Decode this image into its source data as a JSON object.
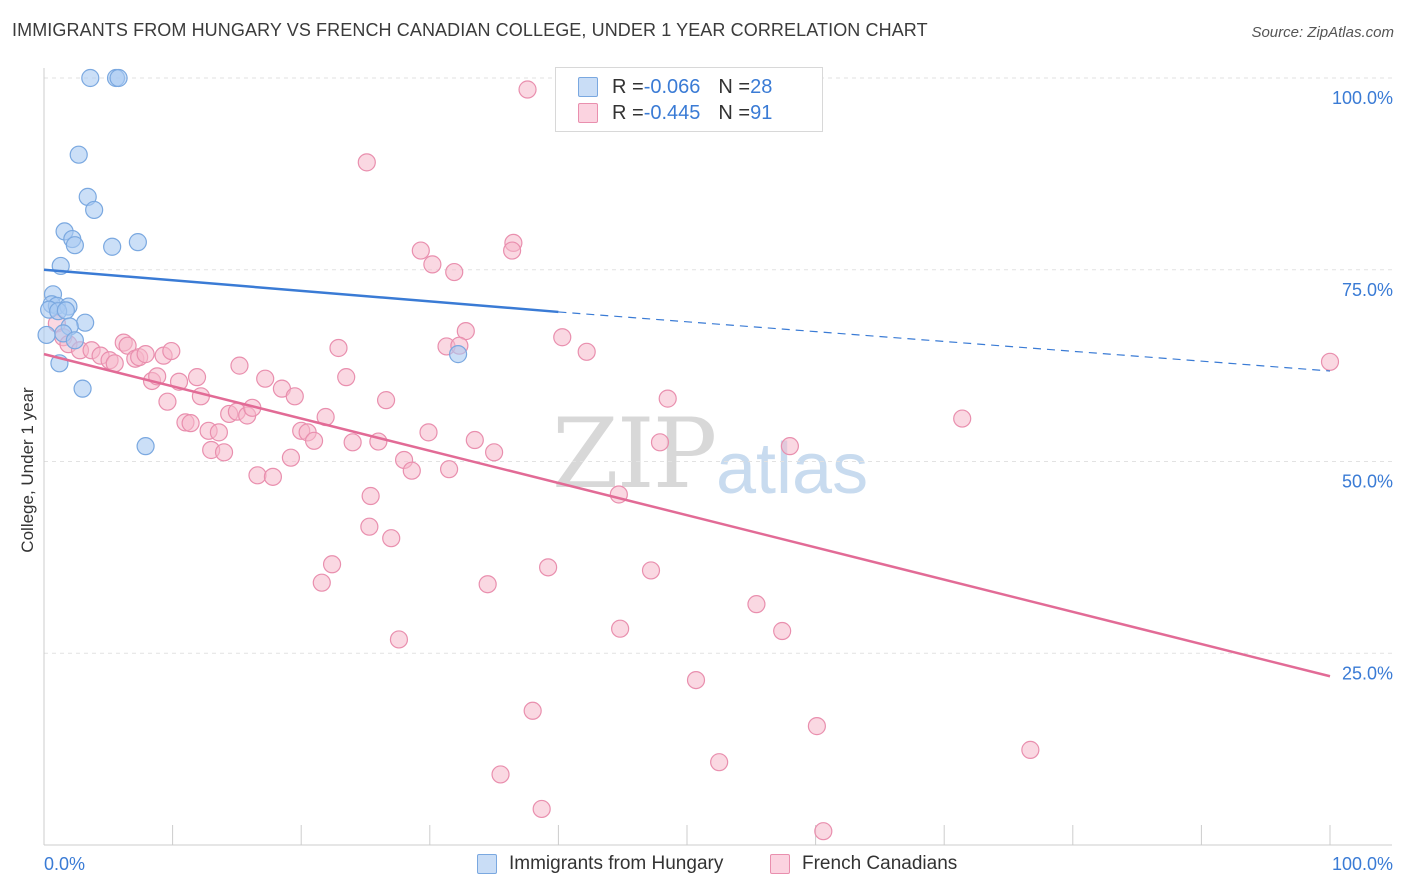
{
  "title": "IMMIGRANTS FROM HUNGARY VS FRENCH CANADIAN COLLEGE, UNDER 1 YEAR CORRELATION CHART",
  "source": "Source: ZipAtlas.com",
  "watermark": {
    "zip": "ZIP",
    "atlas": "atlas"
  },
  "legend": {
    "rows": [
      {
        "r_label": "R = ",
        "r_value": "-0.066",
        "n_label": "N = ",
        "n_value": "28",
        "color": "#a9c9f2"
      },
      {
        "r_label": "R = ",
        "r_value": "-0.445",
        "n_label": "N = ",
        "n_value": "91",
        "color": "#f6b8cb"
      }
    ]
  },
  "bottom_legend": {
    "hungary": "Immigrants from Hungary",
    "french": "French Canadians"
  },
  "colors": {
    "blue_fill": "#a9c9f2",
    "blue_stroke": "#7aa8e0",
    "blue_line": "#3a7bd5",
    "pink_fill": "#f6b8cb",
    "pink_stroke": "#e98fae",
    "pink_line": "#e26b96",
    "grid": "#e2e2e2",
    "tick_label": "#3a7bd5"
  },
  "chart_data": {
    "type": "scatter",
    "title": "IMMIGRANTS FROM HUNGARY VS FRENCH CANADIAN COLLEGE, UNDER 1 YEAR CORRELATION CHART",
    "xlabel": "",
    "ylabel": "College, Under 1 year",
    "xlim": [
      0,
      100
    ],
    "ylim": [
      0,
      100
    ],
    "x_tick_labels": [
      "0.0%",
      "100.0%"
    ],
    "y_tick_labels": [
      "100.0%",
      "75.0%",
      "50.0%",
      "25.0%"
    ],
    "y_ticks": [
      100,
      75,
      50,
      25
    ],
    "grid": true,
    "legend_position": "top-center",
    "series": [
      {
        "name": "Immigrants from Hungary",
        "r": -0.066,
        "n": 28,
        "trend": {
          "x0": 0,
          "y0": 75.0,
          "x1": 40,
          "y1": 69.5,
          "dashed_to_x": 100,
          "dashed_to_y": 61.8
        },
        "points": [
          [
            3.6,
            100
          ],
          [
            5.6,
            100
          ],
          [
            5.8,
            100
          ],
          [
            2.7,
            90
          ],
          [
            3.4,
            84.5
          ],
          [
            3.9,
            82.8
          ],
          [
            1.6,
            80
          ],
          [
            2.2,
            79
          ],
          [
            2.4,
            78.2
          ],
          [
            5.3,
            78
          ],
          [
            7.3,
            78.6
          ],
          [
            1.3,
            75.5
          ],
          [
            0.7,
            71.8
          ],
          [
            0.6,
            70.5
          ],
          [
            1.0,
            70.3
          ],
          [
            1.9,
            70.2
          ],
          [
            0.4,
            69.8
          ],
          [
            1.1,
            69.6
          ],
          [
            1.7,
            69.7
          ],
          [
            3.2,
            68.1
          ],
          [
            2.0,
            67.6
          ],
          [
            1.5,
            66.7
          ],
          [
            2.4,
            65.8
          ],
          [
            1.2,
            62.8
          ],
          [
            3.0,
            59.5
          ],
          [
            7.9,
            52.0
          ],
          [
            32.2,
            64.0
          ],
          [
            0.2,
            66.5
          ]
        ]
      },
      {
        "name": "French Canadians",
        "r": -0.445,
        "n": 91,
        "trend": {
          "x0": 0,
          "y0": 64.0,
          "x1": 100,
          "y1": 22.0
        },
        "points": [
          [
            37.6,
            98.5
          ],
          [
            25.1,
            89.0
          ],
          [
            36.5,
            78.5
          ],
          [
            36.4,
            77.5
          ],
          [
            29.3,
            77.5
          ],
          [
            31.9,
            74.7
          ],
          [
            30.2,
            75.7
          ],
          [
            32.8,
            67.0
          ],
          [
            31.3,
            65.0
          ],
          [
            22.9,
            64.8
          ],
          [
            40.3,
            66.2
          ],
          [
            42.2,
            64.3
          ],
          [
            32.3,
            65.1
          ],
          [
            1.0,
            68.0
          ],
          [
            1.5,
            66.2
          ],
          [
            1.9,
            65.3
          ],
          [
            2.8,
            64.5
          ],
          [
            3.7,
            64.5
          ],
          [
            4.4,
            63.8
          ],
          [
            5.1,
            63.2
          ],
          [
            5.5,
            62.8
          ],
          [
            6.2,
            65.5
          ],
          [
            6.5,
            65.1
          ],
          [
            7.1,
            63.4
          ],
          [
            7.4,
            63.6
          ],
          [
            7.9,
            64.0
          ],
          [
            8.4,
            60.5
          ],
          [
            8.8,
            61.1
          ],
          [
            9.3,
            63.8
          ],
          [
            9.6,
            57.8
          ],
          [
            9.9,
            64.4
          ],
          [
            10.5,
            60.4
          ],
          [
            11.0,
            55.1
          ],
          [
            11.4,
            55.0
          ],
          [
            11.9,
            61.0
          ],
          [
            12.2,
            58.5
          ],
          [
            12.8,
            54.0
          ],
          [
            13.0,
            51.5
          ],
          [
            13.6,
            53.8
          ],
          [
            14.0,
            51.2
          ],
          [
            14.4,
            56.2
          ],
          [
            15.0,
            56.5
          ],
          [
            15.2,
            62.5
          ],
          [
            15.8,
            56.0
          ],
          [
            16.2,
            57.0
          ],
          [
            16.6,
            48.2
          ],
          [
            17.2,
            60.8
          ],
          [
            17.8,
            48.0
          ],
          [
            18.5,
            59.5
          ],
          [
            19.2,
            50.5
          ],
          [
            19.5,
            58.5
          ],
          [
            20.0,
            54.0
          ],
          [
            20.5,
            53.8
          ],
          [
            21.0,
            52.7
          ],
          [
            21.9,
            55.8
          ],
          [
            23.5,
            61.0
          ],
          [
            24.0,
            52.5
          ],
          [
            25.4,
            45.5
          ],
          [
            25.3,
            41.5
          ],
          [
            26.0,
            52.6
          ],
          [
            26.6,
            58.0
          ],
          [
            27.0,
            40.0
          ],
          [
            28.0,
            50.2
          ],
          [
            28.6,
            48.8
          ],
          [
            29.9,
            53.8
          ],
          [
            31.5,
            49.0
          ],
          [
            33.5,
            52.8
          ],
          [
            35.0,
            51.2
          ],
          [
            22.4,
            36.6
          ],
          [
            21.6,
            34.2
          ],
          [
            27.6,
            26.8
          ],
          [
            34.5,
            34.0
          ],
          [
            39.2,
            36.2
          ],
          [
            44.7,
            45.7
          ],
          [
            38.0,
            17.5
          ],
          [
            35.5,
            9.2
          ],
          [
            38.7,
            4.7
          ],
          [
            44.8,
            28.2
          ],
          [
            47.2,
            35.8
          ],
          [
            47.9,
            52.5
          ],
          [
            48.5,
            58.2
          ],
          [
            50.7,
            21.5
          ],
          [
            52.5,
            10.8
          ],
          [
            55.4,
            31.4
          ],
          [
            57.4,
            27.9
          ],
          [
            58.0,
            52.0
          ],
          [
            60.1,
            15.5
          ],
          [
            60.6,
            1.8
          ],
          [
            71.4,
            55.6
          ],
          [
            76.7,
            12.4
          ],
          [
            100.0,
            63.0
          ]
        ]
      }
    ]
  }
}
